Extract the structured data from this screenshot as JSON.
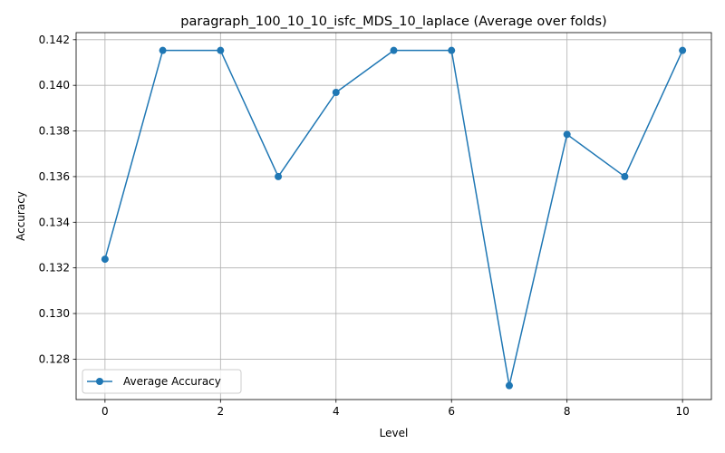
{
  "chart_data": {
    "type": "line",
    "title": "paragraph_100_10_10_isfc_MDS_10_laplace (Average over folds)",
    "xlabel": "Level",
    "ylabel": "Accuracy",
    "x": [
      0,
      1,
      2,
      3,
      4,
      5,
      6,
      7,
      8,
      9,
      10
    ],
    "series": [
      {
        "name": "Average Accuracy",
        "values": [
          0.13238,
          0.14153,
          0.14153,
          0.136,
          0.13969,
          0.14153,
          0.14153,
          0.12684,
          0.13785,
          0.136,
          0.14153
        ],
        "color": "#1f77b4",
        "marker": "circle"
      }
    ],
    "xlim": [
      -0.5,
      10.5
    ],
    "ylim": [
      0.12623,
      0.14231
    ],
    "xticks": [
      0,
      2,
      4,
      6,
      8,
      10
    ],
    "xtick_labels": [
      "0",
      "2",
      "4",
      "6",
      "8",
      "10"
    ],
    "yticks": [
      0.128,
      0.13,
      0.132,
      0.134,
      0.136,
      0.138,
      0.14,
      0.142
    ],
    "ytick_labels": [
      "0.128",
      "0.130",
      "0.132",
      "0.134",
      "0.136",
      "0.138",
      "0.140",
      "0.142"
    ],
    "grid": true,
    "legend_position": "lower-left"
  }
}
